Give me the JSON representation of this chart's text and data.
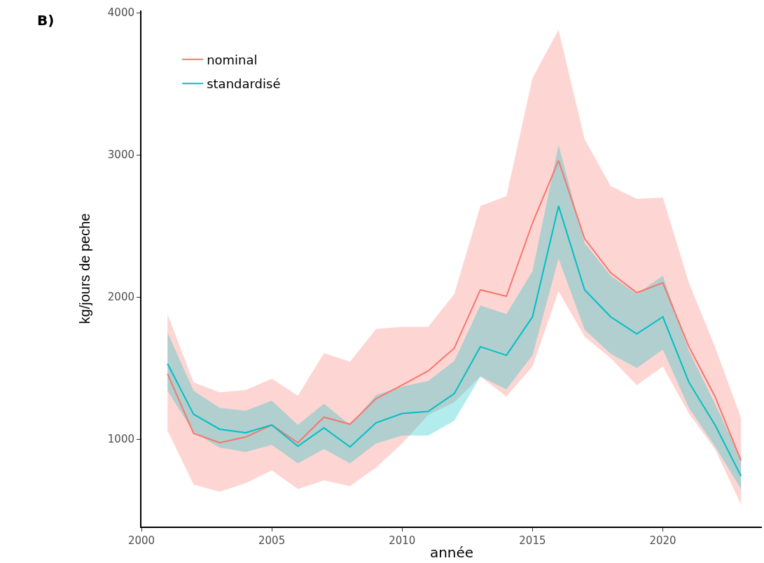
{
  "chart_data": {
    "type": "line",
    "xlabel": "année",
    "ylabel": "kg/jours de peche",
    "annotations": [
      "B)"
    ],
    "x": [
      2001,
      2002,
      2003,
      2004,
      2005,
      2006,
      2007,
      2008,
      2009,
      2010,
      2011,
      2012,
      2013,
      2014,
      2015,
      2016,
      2017,
      2018,
      2019,
      2020,
      2021,
      2022,
      2023
    ],
    "series": [
      {
        "name": "nominal",
        "color": "#f8766d",
        "values": [
          1460,
          1040,
          975,
          1015,
          1100,
          975,
          1155,
          1105,
          1285,
          1380,
          1480,
          1640,
          2050,
          2005,
          2520,
          2960,
          2410,
          2170,
          2030,
          2100,
          1650,
          1300,
          850
        ],
        "lower": [
          1060,
          680,
          630,
          690,
          780,
          650,
          710,
          670,
          800,
          970,
          1170,
          1260,
          1440,
          1300,
          1510,
          2040,
          1720,
          1570,
          1380,
          1510,
          1180,
          930,
          540
        ],
        "upper": [
          1880,
          1400,
          1330,
          1345,
          1425,
          1305,
          1605,
          1545,
          1775,
          1790,
          1790,
          2020,
          2640,
          2710,
          3540,
          3880,
          3110,
          2780,
          2690,
          2700,
          2100,
          1650,
          1150
        ]
      },
      {
        "name": "standardisé",
        "color": "#00bfc4",
        "values": [
          1530,
          1175,
          1070,
          1045,
          1100,
          950,
          1080,
          945,
          1115,
          1180,
          1195,
          1320,
          1650,
          1590,
          1860,
          2640,
          2050,
          1860,
          1740,
          1860,
          1400,
          1100,
          740
        ],
        "lower": [
          1340,
          1050,
          940,
          910,
          960,
          830,
          930,
          830,
          970,
          1025,
          1025,
          1130,
          1440,
          1350,
          1590,
          2270,
          1770,
          1600,
          1500,
          1630,
          1220,
          950,
          650
        ],
        "upper": [
          1750,
          1340,
          1220,
          1200,
          1270,
          1100,
          1250,
          1100,
          1310,
          1370,
          1410,
          1550,
          1940,
          1880,
          2180,
          3070,
          2380,
          2150,
          2020,
          2150,
          1620,
          1250,
          860
        ]
      }
    ],
    "xlim": [
      2000,
      2023.8
    ],
    "xticks": [
      2000,
      2005,
      2010,
      2015,
      2020
    ],
    "ylim": [
      385,
      4015
    ],
    "yticks": [
      1000,
      2000,
      3000,
      4000
    ],
    "grid": false,
    "legend": "top left",
    "marker": "none",
    "line_style": "solid"
  }
}
